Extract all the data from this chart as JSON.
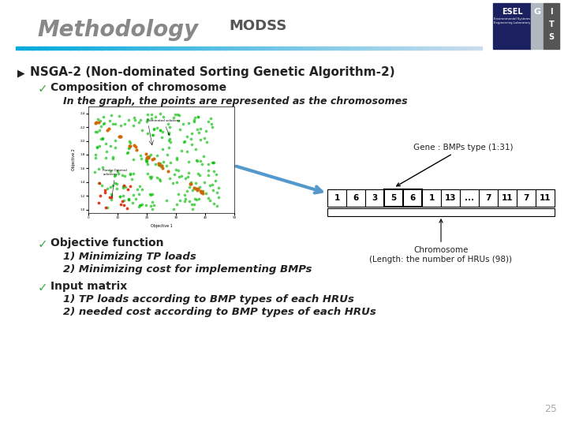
{
  "title": "Methodology",
  "modss": "MODSS",
  "bg_color": "#ffffff",
  "title_color": "#888888",
  "modss_color": "#555555",
  "header_line_color1": "#00aadd",
  "header_line_color2": "#c8e8f0",
  "nsga_line": "NSGA-2 (Non-dominated Sorting Genetic Algorithm-2)",
  "comp_chrom": "Composition of chromosome",
  "graph_text": "In the graph, the points are represented as the chromosomes",
  "gene_label": "Gene : BMPs type (1:31)",
  "chrom_cells": [
    "1",
    "6",
    "3",
    "5",
    "6",
    "1",
    "13",
    "...",
    "7",
    "11",
    "7",
    "11"
  ],
  "chrom_highlight": [
    3,
    4
  ],
  "chrom_label": "Chromosome\n(Length: the number of HRUs (98))",
  "obj_func": "Objective function",
  "obj1": "1) Minimizing TP loads",
  "obj2": "2) Minimizing cost for implementing BMPs",
  "input_matrix": "Input matrix",
  "inp1": "1) TP loads according to BMP types of each HRUs",
  "inp2": "2) needed cost according to BMP types of each HRUs",
  "page_num": "25",
  "text_color": "#222222",
  "bullet_color": "#44aa44",
  "check_color": "#44aa44"
}
